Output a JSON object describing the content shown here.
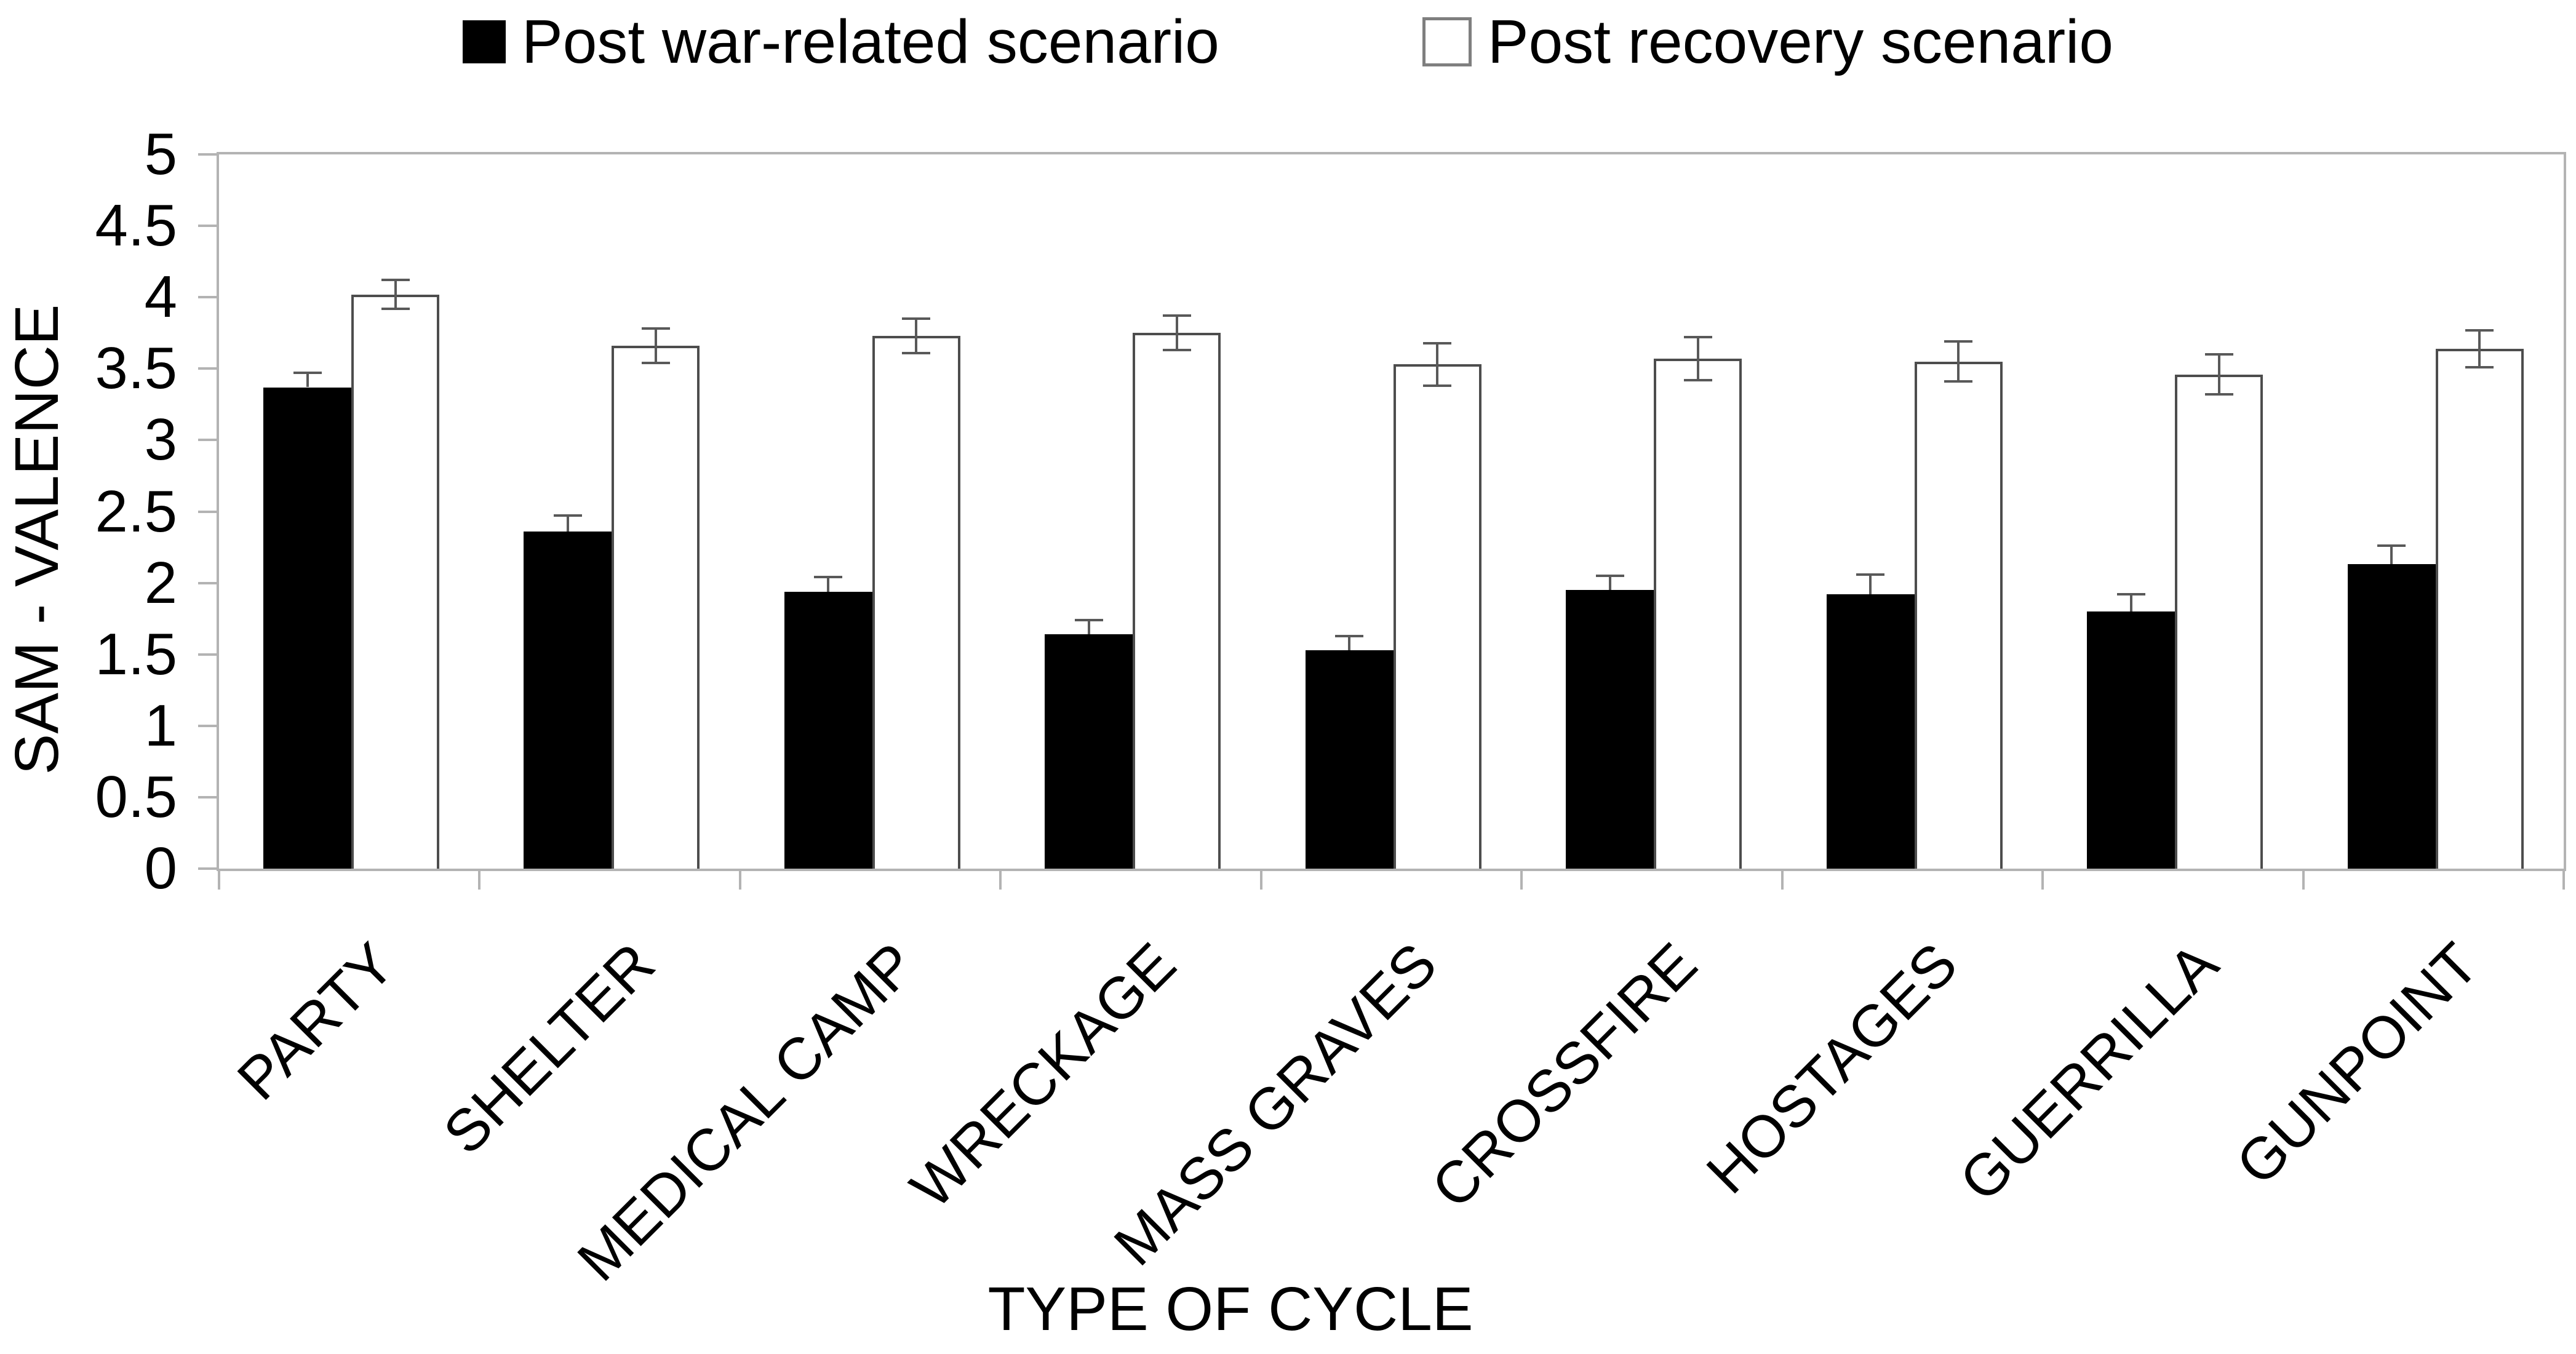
{
  "legend": {
    "items": [
      {
        "label": "Post war-related scenario",
        "swatch_color": "#000000"
      },
      {
        "label": "Post recovery scenario",
        "swatch_color": "#ffffff"
      }
    ]
  },
  "y_axis": {
    "title": "SAM - VALENCE",
    "tick_labels": [
      "5",
      "4.5",
      "4",
      "3.5",
      "3",
      "2.5",
      "2",
      "1.5",
      "1",
      "0.5",
      "0"
    ],
    "min": 0,
    "max": 5,
    "step": 0.5
  },
  "x_axis": {
    "title": "TYPE OF CYCLE"
  },
  "chart_data": {
    "type": "bar",
    "title": "",
    "categories": [
      "PARTY",
      "SHELTER",
      "MEDICAL CAMP",
      "WRECKAGE",
      "MASS GRAVES",
      "CROSSFIRE",
      "HOSTAGES",
      "GUERRILLA",
      "GUNPOINT"
    ],
    "series": [
      {
        "name": "Post war-related scenario",
        "color": "#000000",
        "values": [
          3.37,
          2.36,
          1.94,
          1.64,
          1.53,
          1.95,
          1.92,
          1.8,
          2.13
        ],
        "errors": [
          0.1,
          0.11,
          0.1,
          0.1,
          0.1,
          0.1,
          0.14,
          0.12,
          0.13
        ]
      },
      {
        "name": "Post recovery scenario",
        "color": "#ffffff",
        "values": [
          4.02,
          3.66,
          3.73,
          3.75,
          3.53,
          3.57,
          3.55,
          3.46,
          3.64
        ],
        "errors": [
          0.1,
          0.12,
          0.12,
          0.12,
          0.15,
          0.15,
          0.14,
          0.14,
          0.13
        ]
      }
    ],
    "xlabel": "TYPE OF CYCLE",
    "ylabel": "SAM - VALENCE",
    "ylim": [
      0,
      5
    ],
    "grid": false,
    "legend_position": "top",
    "error_bars": true
  },
  "colors": {
    "bar_fill_series1": "#000000",
    "bar_fill_series2": "#ffffff",
    "bar_outline": "#4d4d4d",
    "axis_line": "#b3b3b3",
    "error_bar": "#595959",
    "text": "#000000",
    "background": "#ffffff"
  }
}
